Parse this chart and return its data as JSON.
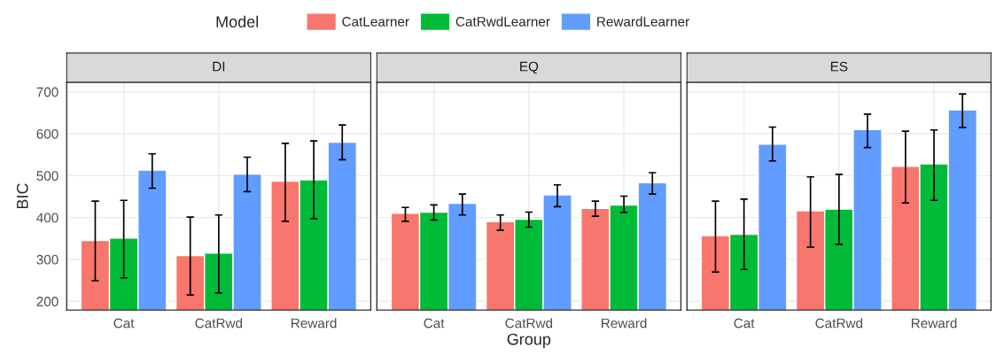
{
  "chart_data": [
    {
      "type": "bar",
      "title": "DI",
      "ylabel": "BIC",
      "legend_title": "Model",
      "legend": "top",
      "categories": [
        "Cat",
        "CatRwd",
        "Reward"
      ],
      "ylim": [
        179,
        723
      ],
      "yticks": [
        200,
        300,
        400,
        500,
        600,
        700
      ],
      "grid": true,
      "series": [
        {
          "name": "CatLearner",
          "color": "#f8766d",
          "values": [
            345,
            309,
            487
          ],
          "errors": [
            [
              249,
              439
            ],
            [
              215,
              401
            ],
            [
              391,
              577
            ]
          ]
        },
        {
          "name": "CatRwdLearner",
          "color": "#00ba38",
          "values": [
            351,
            315,
            490
          ],
          "errors": [
            [
              256,
              441
            ],
            [
              220,
              406
            ],
            [
              397,
              583
            ]
          ]
        },
        {
          "name": "RewardLearner",
          "color": "#619cff",
          "values": [
            513,
            504,
            580
          ],
          "errors": [
            [
              470,
              552
            ],
            [
              462,
              544
            ],
            [
              538,
              621
            ]
          ]
        }
      ]
    },
    {
      "type": "bar",
      "title": "EQ",
      "xlabel": "Group",
      "tick_labels": "x",
      "categories": [
        "Cat",
        "CatRwd",
        "Reward"
      ],
      "ylim": [
        179,
        723
      ],
      "yticks": [
        200,
        300,
        400,
        500,
        600,
        700
      ],
      "grid": true,
      "series": [
        {
          "color": "#f8766d",
          "values": [
            410,
            390,
            422
          ],
          "errors": [
            [
              391,
              424
            ],
            [
              370,
              406
            ],
            [
              403,
              439
            ]
          ]
        },
        {
          "color": "#00ba38",
          "values": [
            413,
            396,
            430
          ],
          "errors": [
            [
              394,
              430
            ],
            [
              377,
              413
            ],
            [
              412,
              451
            ]
          ]
        },
        {
          "color": "#619cff",
          "values": [
            434,
            454,
            483
          ],
          "errors": [
            [
              406,
              456
            ],
            [
              426,
              478
            ],
            [
              456,
              507
            ]
          ]
        }
      ]
    },
    {
      "type": "bar",
      "title": "ES",
      "tick_labels": "x",
      "categories": [
        "Cat",
        "CatRwd",
        "Reward"
      ],
      "ylim": [
        179,
        723
      ],
      "yticks": [
        200,
        300,
        400,
        500,
        600,
        700
      ],
      "grid": true,
      "series": [
        {
          "color": "#f8766d",
          "values": [
            357,
            416,
            522
          ],
          "errors": [
            [
              270,
              439
            ],
            [
              329,
              497
            ],
            [
              435,
              606
            ]
          ]
        },
        {
          "color": "#00ba38",
          "values": [
            360,
            420,
            528
          ],
          "errors": [
            [
              276,
              444
            ],
            [
              336,
              503
            ],
            [
              441,
              609
            ]
          ]
        },
        {
          "color": "#619cff",
          "values": [
            575,
            610,
            657
          ],
          "errors": [
            [
              535,
              616
            ],
            [
              567,
              647
            ],
            [
              615,
              695
            ]
          ]
        }
      ]
    }
  ]
}
